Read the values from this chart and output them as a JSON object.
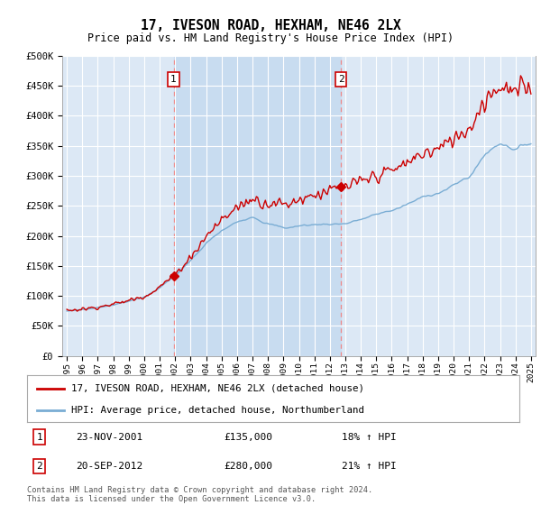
{
  "title": "17, IVESON ROAD, HEXHAM, NE46 2LX",
  "subtitle": "Price paid vs. HM Land Registry's House Price Index (HPI)",
  "background_color": "#dce8f5",
  "plot_bg_color": "#dce8f5",
  "ylim": [
    0,
    500000
  ],
  "yticks": [
    0,
    50000,
    100000,
    150000,
    200000,
    250000,
    300000,
    350000,
    400000,
    450000,
    500000
  ],
  "ytick_labels": [
    "£0",
    "£50K",
    "£100K",
    "£150K",
    "£200K",
    "£250K",
    "£300K",
    "£350K",
    "£400K",
    "£450K",
    "£500K"
  ],
  "xmin_year": 1995,
  "xmax_year": 2025,
  "xtick_years": [
    1995,
    1996,
    1997,
    1998,
    1999,
    2000,
    2001,
    2002,
    2003,
    2004,
    2005,
    2006,
    2007,
    2008,
    2009,
    2010,
    2011,
    2012,
    2013,
    2014,
    2015,
    2016,
    2017,
    2018,
    2019,
    2020,
    2021,
    2022,
    2023,
    2024,
    2025
  ],
  "sale1_date": 2001.9,
  "sale1_price": 135000,
  "sale1_label": "1",
  "sale2_date": 2012.72,
  "sale2_price": 280000,
  "sale2_label": "2",
  "line_color_house": "#cc0000",
  "line_color_hpi": "#7aadd4",
  "legend_house": "17, IVESON ROAD, HEXHAM, NE46 2LX (detached house)",
  "legend_hpi": "HPI: Average price, detached house, Northumberland",
  "annotation1_date": "23-NOV-2001",
  "annotation1_price": "£135,000",
  "annotation1_hpi": "18% ↑ HPI",
  "annotation2_date": "20-SEP-2012",
  "annotation2_price": "£280,000",
  "annotation2_hpi": "21% ↑ HPI",
  "footer": "Contains HM Land Registry data © Crown copyright and database right 2024.\nThis data is licensed under the Open Government Licence v3.0.",
  "grid_color": "#ffffff",
  "vline_color": "#ee8888",
  "highlight_color": "#c8dcf0"
}
